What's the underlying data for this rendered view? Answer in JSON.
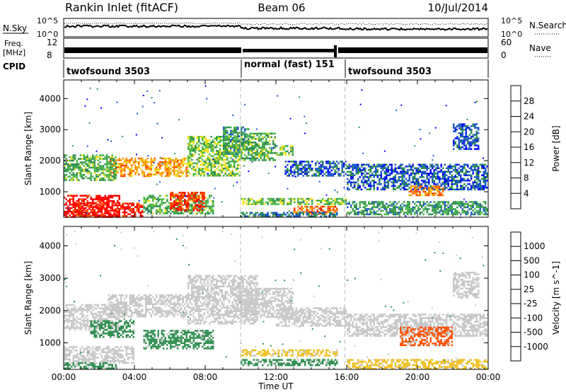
{
  "header": {
    "station": "Rankin Inlet (fitACF)",
    "beam": "Beam 06",
    "date": "10/Jul/2014"
  },
  "strips": {
    "nsky_label": "N.Sky",
    "nsearch_label": "N.Search",
    "nsky_ticks": [
      "10^5",
      "10^0"
    ],
    "nsearch_ticks": [
      "10^5",
      "10^0"
    ],
    "freq_label_1": "Freq.",
    "freq_label_2": "[MHz]",
    "freq_ticks": [
      "12",
      "8"
    ],
    "nave_label": "Nave",
    "nave_ticks": [
      "60",
      "0"
    ],
    "cpid_label": "CPID",
    "cpid_segments": [
      {
        "name": "twofsound 3503",
        "start": 0,
        "end": 10
      },
      {
        "name": "normal (fast) 151",
        "start": 10,
        "end": 15.9
      },
      {
        "name": "twofsound 3503",
        "start": 15.9,
        "end": 24
      }
    ]
  },
  "chart_data": [
    {
      "type": "heatmap",
      "quantity": "Power",
      "ylabel": "Slant Range [km]",
      "xlabel": "Time UT",
      "xlim": [
        0,
        24
      ],
      "ylim": [
        180,
        4600
      ],
      "yticks": [
        1000,
        2000,
        3000,
        4000
      ],
      "xticks": [
        "00:00",
        "04:00",
        "08:00",
        "12:00",
        "16:00",
        "20:00",
        "00:00"
      ],
      "colorbar": {
        "label": "Power [dB]",
        "ticks": [
          "4",
          "8",
          "12",
          "16",
          "20",
          "24",
          "28"
        ],
        "range": [
          0,
          30
        ],
        "colors": [
          "#0000ff",
          "#1a55cc",
          "#2f8f4f",
          "#4cb848",
          "#f0e020",
          "#ff9a00",
          "#ff5000",
          "#ff0000"
        ]
      },
      "regions": [
        {
          "t0": 0.0,
          "t1": 3.2,
          "r0": 200,
          "r1": 900,
          "value": 29
        },
        {
          "t0": 0.5,
          "t1": 4.5,
          "r0": 200,
          "r1": 650,
          "value": 28
        },
        {
          "t0": 4.5,
          "t1": 8.5,
          "r0": 300,
          "r1": 900,
          "value": 12
        },
        {
          "t0": 6.0,
          "t1": 8.0,
          "r0": 400,
          "r1": 1000,
          "value": 25
        },
        {
          "t0": 2.5,
          "t1": 7.0,
          "r0": 1500,
          "r1": 2100,
          "value": 20
        },
        {
          "t0": 0.0,
          "t1": 3.0,
          "r0": 1400,
          "r1": 2200,
          "value": 12
        },
        {
          "t0": 7.0,
          "t1": 10.0,
          "r0": 1500,
          "r1": 2800,
          "value": 14
        },
        {
          "t0": 9.0,
          "t1": 10.5,
          "r0": 2200,
          "r1": 3100,
          "value": 10
        },
        {
          "t0": 10.0,
          "t1": 12.0,
          "r0": 2000,
          "r1": 2900,
          "value": 12
        },
        {
          "t0": 12.0,
          "t1": 13.0,
          "r0": 2200,
          "r1": 2500,
          "value": 14
        },
        {
          "t0": 12.5,
          "t1": 16.0,
          "r0": 1500,
          "r1": 2000,
          "value": 6
        },
        {
          "t0": 10.0,
          "t1": 16.0,
          "r0": 600,
          "r1": 800,
          "value": 14
        },
        {
          "t0": 13.0,
          "t1": 15.5,
          "r0": 300,
          "r1": 550,
          "value": 24
        },
        {
          "t0": 10.0,
          "t1": 15.5,
          "r0": 180,
          "r1": 350,
          "value": 8
        },
        {
          "t0": 16.0,
          "t1": 24.0,
          "r0": 1100,
          "r1": 1900,
          "value": 6
        },
        {
          "t0": 16.0,
          "t1": 24.0,
          "r0": 300,
          "r1": 700,
          "value": 10
        },
        {
          "t0": 19.5,
          "t1": 21.5,
          "r0": 900,
          "r1": 1200,
          "value": 22
        },
        {
          "t0": 22.0,
          "t1": 23.5,
          "r0": 2400,
          "r1": 3200,
          "value": 6
        }
      ]
    },
    {
      "type": "heatmap",
      "quantity": "Velocity",
      "ylabel": "Slant Range [km]",
      "xlabel": "Time UT",
      "xlim": [
        0,
        24
      ],
      "ylim": [
        180,
        4600
      ],
      "yticks": [
        1000,
        2000,
        3000,
        4000
      ],
      "xticks": [
        "00:00",
        "04:00",
        "08:00",
        "12:00",
        "16:00",
        "20:00",
        "00:00"
      ],
      "colorbar": {
        "label": "Velocity [m s^-1]",
        "ticks": [
          "1000",
          "500",
          "100",
          "25",
          "-25",
          "-100",
          "-500",
          "-1000"
        ],
        "colors": [
          "#2040c0",
          "#3a78b8",
          "#2f8f4f",
          "#6cc040",
          "#c8c8c8",
          "#f0c020",
          "#ff9a00",
          "#ff5000",
          "#ff0000"
        ]
      },
      "regions": [
        {
          "t0": 0.0,
          "t1": 3.2,
          "r0": 1400,
          "r1": 2200,
          "value": "25"
        },
        {
          "t0": 2.5,
          "t1": 7.0,
          "r0": 1800,
          "r1": 2500,
          "value": "25"
        },
        {
          "t0": 7.0,
          "t1": 11.0,
          "r0": 1600,
          "r1": 3100,
          "value": "25"
        },
        {
          "t0": 10.0,
          "t1": 13.0,
          "r0": 1800,
          "r1": 2700,
          "value": "25"
        },
        {
          "t0": 12.0,
          "t1": 16.0,
          "r0": 1500,
          "r1": 2100,
          "value": "25"
        },
        {
          "t0": 0.0,
          "t1": 4.0,
          "r0": 400,
          "r1": 900,
          "value": "25"
        },
        {
          "t0": 4.5,
          "t1": 8.5,
          "r0": 800,
          "r1": 1400,
          "value": "100"
        },
        {
          "t0": 1.5,
          "t1": 4.0,
          "r0": 1200,
          "r1": 1700,
          "value": "100"
        },
        {
          "t0": 10.0,
          "t1": 15.5,
          "r0": 600,
          "r1": 800,
          "value": "-100"
        },
        {
          "t0": 0.0,
          "t1": 3.0,
          "r0": 200,
          "r1": 400,
          "value": "100"
        },
        {
          "t0": 10.0,
          "t1": 15.5,
          "r0": 300,
          "r1": 500,
          "value": "100"
        },
        {
          "t0": 16.0,
          "t1": 24.0,
          "r0": 1200,
          "r1": 1900,
          "value": "25"
        },
        {
          "t0": 19.0,
          "t1": 22.0,
          "r0": 900,
          "r1": 1500,
          "value": "-500"
        },
        {
          "t0": 16.0,
          "t1": 24.0,
          "r0": 200,
          "r1": 500,
          "value": "-100"
        },
        {
          "t0": 22.0,
          "t1": 23.5,
          "r0": 2400,
          "r1": 3200,
          "value": "-25"
        }
      ]
    }
  ]
}
